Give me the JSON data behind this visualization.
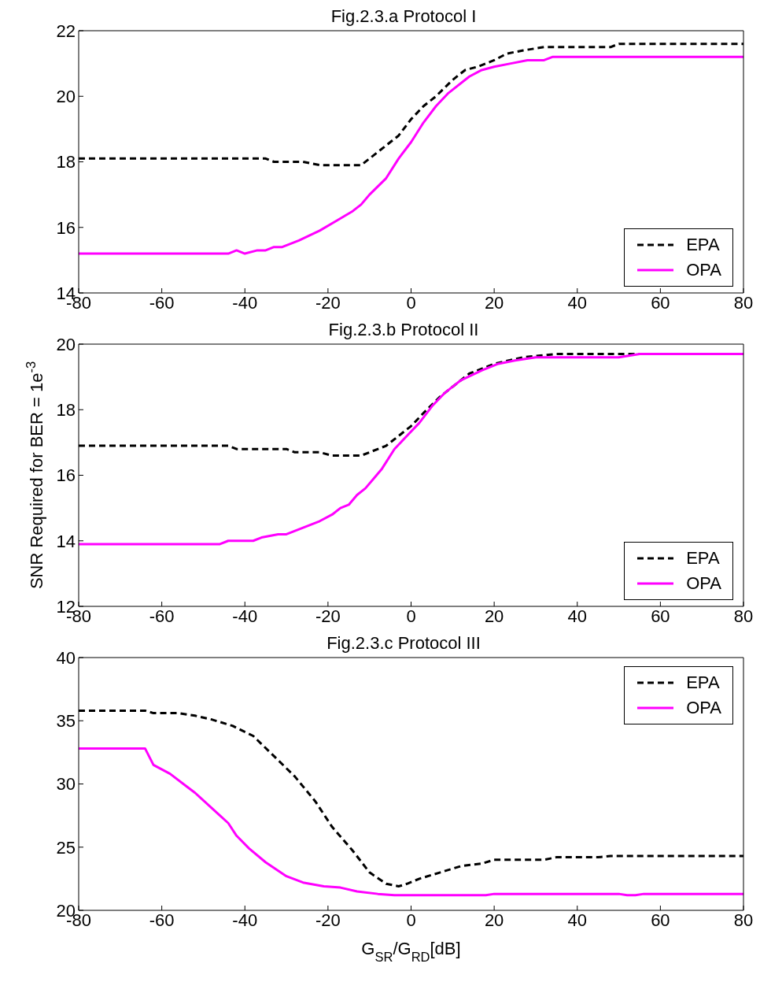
{
  "chart_data": [
    {
      "type": "line",
      "title": "Fig.2.3.a Protocol I",
      "xlim": [
        -80,
        80
      ],
      "xticks": [
        -80,
        -60,
        -40,
        -20,
        0,
        20,
        40,
        60,
        80
      ],
      "ylim": [
        14,
        22
      ],
      "yticks": [
        14,
        16,
        18,
        20,
        22
      ],
      "legend": "bottom right",
      "series": [
        {
          "name": "EPA",
          "color": "#000000",
          "line_style": "dashed",
          "x": [
            -80,
            -35,
            -33,
            -26,
            -22,
            -12,
            -10,
            -6,
            -3,
            0,
            3,
            6,
            10,
            13,
            16,
            20,
            23,
            27,
            32,
            48,
            50,
            80
          ],
          "values": [
            18.1,
            18.1,
            18.0,
            18.0,
            17.9,
            17.9,
            18.1,
            18.5,
            18.8,
            19.3,
            19.7,
            20.0,
            20.5,
            20.8,
            20.9,
            21.1,
            21.3,
            21.4,
            21.5,
            21.5,
            21.6,
            21.6
          ]
        },
        {
          "name": "OPA",
          "color": "#ff00ff",
          "line_style": "solid",
          "x": [
            -80,
            -44,
            -42,
            -40,
            -37,
            -35,
            -33,
            -31,
            -27,
            -22,
            -18,
            -14,
            -12,
            -10,
            -6,
            -3,
            0,
            3,
            6,
            9,
            14,
            17,
            20,
            24,
            28,
            32,
            34,
            80
          ],
          "values": [
            15.2,
            15.2,
            15.3,
            15.2,
            15.3,
            15.3,
            15.4,
            15.4,
            15.6,
            15.9,
            16.2,
            16.5,
            16.7,
            17.0,
            17.5,
            18.1,
            18.6,
            19.2,
            19.7,
            20.1,
            20.6,
            20.8,
            20.9,
            21.0,
            21.1,
            21.1,
            21.2,
            21.2
          ]
        }
      ]
    },
    {
      "type": "line",
      "title": "Fig.2.3.b Protocol II",
      "ylabel": "SNR Required for BER = 1e$^{-3}$",
      "xlim": [
        -80,
        80
      ],
      "xticks": [
        -80,
        -60,
        -40,
        -20,
        0,
        20,
        40,
        60,
        80
      ],
      "ylim": [
        12,
        20
      ],
      "yticks": [
        12,
        14,
        16,
        18,
        20
      ],
      "legend": "bottom right",
      "series": [
        {
          "name": "EPA",
          "color": "#000000",
          "line_style": "dashed",
          "x": [
            -80,
            -44,
            -42,
            -30,
            -28,
            -22,
            -19,
            -12,
            -10,
            -6,
            -3,
            0,
            3,
            7,
            11,
            14,
            20,
            27,
            35,
            80
          ],
          "values": [
            16.9,
            16.9,
            16.8,
            16.8,
            16.7,
            16.7,
            16.6,
            16.6,
            16.7,
            16.9,
            17.2,
            17.5,
            17.9,
            18.4,
            18.8,
            19.1,
            19.4,
            19.6,
            19.7,
            19.7
          ]
        },
        {
          "name": "OPA",
          "color": "#ff00ff",
          "line_style": "solid",
          "x": [
            -80,
            -46,
            -44,
            -38,
            -36,
            -32,
            -30,
            -26,
            -22,
            -19,
            -17,
            -15,
            -13,
            -11,
            -9,
            -7,
            -4,
            -1,
            2,
            5,
            8,
            12,
            17,
            21,
            25,
            30,
            50,
            55,
            80
          ],
          "values": [
            13.9,
            13.9,
            14.0,
            14.0,
            14.1,
            14.2,
            14.2,
            14.4,
            14.6,
            14.8,
            15.0,
            15.1,
            15.4,
            15.6,
            15.9,
            16.2,
            16.8,
            17.2,
            17.6,
            18.1,
            18.5,
            18.9,
            19.2,
            19.4,
            19.5,
            19.6,
            19.6,
            19.7,
            19.7
          ]
        }
      ]
    },
    {
      "type": "line",
      "title": "Fig.2.3.c Protocol III",
      "xlabel": "G$_{SR}$/G$_{RD}$[dB]",
      "xlim": [
        -80,
        80
      ],
      "xticks": [
        -80,
        -60,
        -40,
        -20,
        0,
        20,
        40,
        60,
        80
      ],
      "ylim": [
        20,
        40
      ],
      "yticks": [
        20,
        25,
        30,
        35,
        40
      ],
      "legend": "top right",
      "series": [
        {
          "name": "EPA",
          "color": "#000000",
          "line_style": "dashed",
          "x": [
            -80,
            -64,
            -62,
            -56,
            -52,
            -48,
            -43,
            -38,
            -33,
            -28,
            -23,
            -19,
            -14,
            -10,
            -6,
            -3,
            -1,
            2,
            7,
            12,
            17,
            20,
            32,
            35,
            45,
            48,
            80
          ],
          "values": [
            35.8,
            35.8,
            35.6,
            35.6,
            35.4,
            35.1,
            34.6,
            33.8,
            32.2,
            30.6,
            28.6,
            26.6,
            24.7,
            23.0,
            22.1,
            21.9,
            22.1,
            22.5,
            23.0,
            23.5,
            23.7,
            24.0,
            24.0,
            24.2,
            24.2,
            24.3,
            24.3
          ]
        },
        {
          "name": "OPA",
          "color": "#ff00ff",
          "line_style": "solid",
          "x": [
            -80,
            -64,
            -62,
            -58,
            -54,
            -52,
            -46,
            -44,
            -42,
            -39,
            -35,
            -30,
            -26,
            -21,
            -17,
            -13,
            -8,
            -4,
            18,
            20,
            50,
            52,
            54,
            56,
            80
          ],
          "values": [
            32.8,
            32.8,
            31.5,
            30.8,
            29.8,
            29.3,
            27.5,
            26.9,
            25.9,
            24.9,
            23.8,
            22.7,
            22.2,
            21.9,
            21.8,
            21.5,
            21.3,
            21.2,
            21.2,
            21.3,
            21.3,
            21.2,
            21.2,
            21.3,
            21.3
          ]
        }
      ]
    }
  ]
}
